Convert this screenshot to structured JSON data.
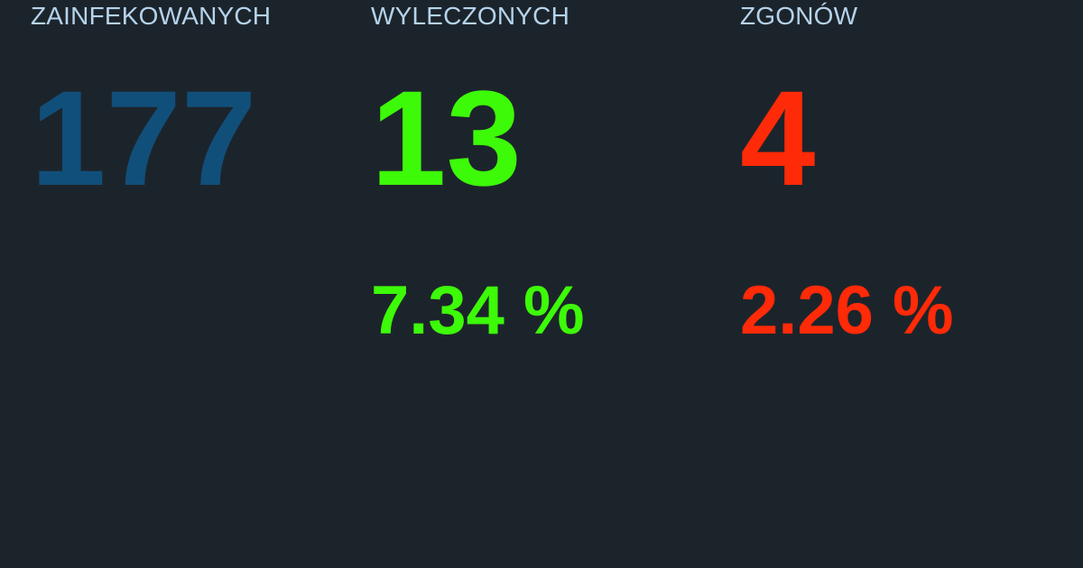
{
  "stats": {
    "infected": {
      "label": "ZAINFEKOWANYCH",
      "count": "177",
      "color": "#114f7b"
    },
    "recovered": {
      "label": "WYLECZONYCH",
      "count": "13",
      "percent": "7.34 %",
      "color": "#3dfa09"
    },
    "deaths": {
      "label": "ZGONÓW",
      "count": "4",
      "percent": "2.26 %",
      "color": "#ff2a07"
    }
  },
  "colors": {
    "background": "#1c242b",
    "label": "#b5d3ec"
  }
}
